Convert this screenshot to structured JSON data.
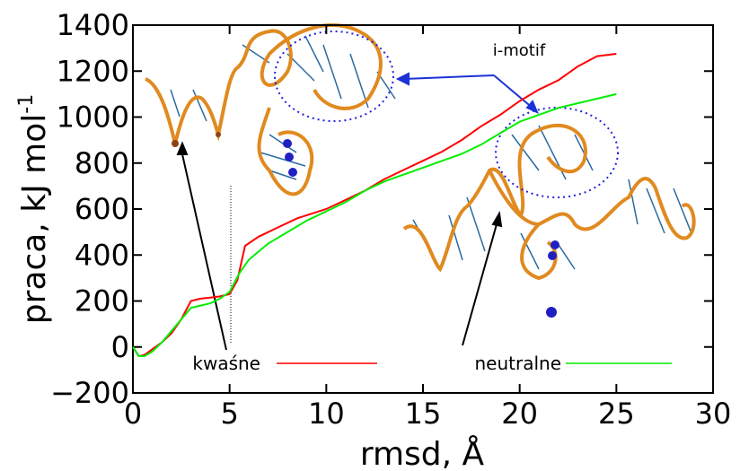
{
  "chart_data": {
    "type": "line",
    "xlabel": "rmsd, Å",
    "ylabel": {
      "text": "praca, kJ mol",
      "superscript": "-1"
    },
    "xlim": [
      0,
      30
    ],
    "xticks": [
      0,
      5,
      10,
      15,
      20,
      25,
      30
    ],
    "ylim": [
      -200,
      1400
    ],
    "yticks": [
      {
        "value": -200,
        "label": "−200"
      },
      0,
      200,
      400,
      600,
      800,
      1000,
      1200,
      1400
    ],
    "grid": false,
    "series": [
      {
        "name": "kwaśne",
        "color": "#ff0000",
        "x": [
          0,
          0.3,
          0.6,
          1,
          1.5,
          2,
          2.5,
          3,
          3.5,
          4,
          4.5,
          5,
          5.4,
          5.8,
          6.5,
          7.5,
          8.5,
          10,
          11,
          12,
          13,
          14,
          15,
          16,
          17,
          18,
          19,
          20,
          21,
          22,
          23,
          24,
          25
        ],
        "values": [
          0,
          -40,
          -35,
          -10,
          20,
          60,
          120,
          200,
          210,
          215,
          220,
          230,
          290,
          440,
          480,
          520,
          560,
          600,
          640,
          680,
          730,
          770,
          810,
          850,
          900,
          960,
          1010,
          1070,
          1120,
          1160,
          1220,
          1265,
          1275
        ]
      },
      {
        "name": "neutralne",
        "color": "#00ee00",
        "x": [
          0,
          0.3,
          0.6,
          1,
          1.5,
          2,
          2.5,
          3,
          3.5,
          4,
          4.5,
          5,
          5.5,
          6,
          7,
          8,
          9,
          10,
          11,
          12,
          13,
          14,
          15,
          16,
          17,
          18,
          19,
          20,
          21,
          22,
          23,
          24,
          25
        ],
        "values": [
          0,
          -40,
          -40,
          -20,
          20,
          70,
          120,
          170,
          180,
          190,
          210,
          240,
          320,
          380,
          450,
          500,
          550,
          590,
          630,
          680,
          720,
          750,
          780,
          810,
          840,
          880,
          930,
          980,
          1010,
          1040,
          1060,
          1080,
          1100
        ]
      }
    ],
    "annotations": [
      "i-motif"
    ]
  }
}
